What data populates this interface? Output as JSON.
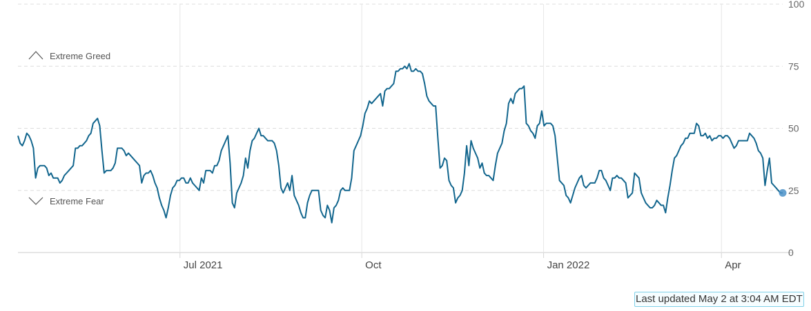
{
  "chart_data": {
    "type": "line",
    "series": [
      {
        "values": [
          47,
          44,
          43,
          45,
          48,
          47,
          45,
          42,
          30,
          34,
          35,
          35,
          35,
          34,
          31,
          32,
          30,
          30,
          30,
          28,
          29,
          31,
          32,
          33,
          34,
          35,
          42,
          42,
          43,
          43,
          44,
          45,
          47,
          48,
          52,
          53,
          54,
          51,
          41,
          32,
          33,
          33,
          33,
          34,
          36,
          42,
          42,
          42,
          41,
          39,
          40,
          39,
          38,
          37,
          36,
          35,
          28,
          31,
          32,
          32,
          33,
          31,
          28,
          26,
          22,
          19,
          17,
          14,
          18,
          23,
          26,
          27,
          29,
          29,
          30,
          30,
          28,
          28,
          30,
          28,
          27,
          26,
          25,
          30,
          28,
          33,
          33,
          33,
          32,
          35,
          35,
          37,
          41,
          43,
          45,
          47,
          36,
          20,
          18,
          24,
          26,
          28,
          31,
          38,
          34,
          41,
          45,
          46,
          48,
          50,
          47,
          47,
          46,
          45,
          45,
          45,
          44,
          41,
          35,
          26,
          24,
          26,
          28,
          25,
          31,
          23,
          21,
          19,
          16,
          14,
          14,
          20,
          23,
          25,
          25,
          25,
          25,
          17,
          15,
          14,
          19,
          17,
          12,
          18,
          19,
          21,
          25,
          26,
          25,
          25,
          25,
          30,
          41,
          43,
          45,
          47,
          51,
          56,
          58,
          61,
          60,
          61,
          62,
          63,
          64,
          59,
          65,
          66,
          66,
          67,
          68,
          73,
          73,
          74,
          74,
          75,
          74,
          76,
          73,
          73,
          74,
          73,
          73,
          72,
          68,
          63,
          61,
          60,
          59,
          59,
          46,
          34,
          35,
          38,
          37,
          29,
          27,
          26,
          20,
          22,
          23,
          25,
          32,
          43,
          35,
          45,
          42,
          40,
          38,
          34,
          36,
          32,
          31,
          31,
          30,
          29,
          35,
          40,
          42,
          44,
          49,
          52,
          60,
          62,
          60,
          64,
          65,
          66,
          66,
          67,
          52,
          51,
          49,
          48,
          46,
          51,
          52,
          57,
          51,
          52,
          52,
          52,
          51,
          47,
          38,
          29,
          28,
          27,
          23,
          22,
          20,
          23,
          26,
          28,
          30,
          31,
          27,
          26,
          27,
          28,
          28,
          28,
          30,
          33,
          33,
          30,
          29,
          27,
          25,
          30,
          30,
          31,
          30,
          30,
          29,
          28,
          22,
          23,
          24,
          32,
          31,
          30,
          24,
          22,
          20,
          19,
          18,
          18,
          19,
          21,
          20,
          19,
          19,
          16,
          22,
          27,
          33,
          38,
          39,
          41,
          43,
          44,
          46,
          46,
          48,
          48,
          48,
          52,
          51,
          47,
          47,
          48,
          46,
          47,
          45,
          46,
          46,
          47,
          47,
          46,
          47,
          47,
          46,
          44,
          42,
          43,
          45,
          45,
          45,
          45,
          45,
          48,
          47,
          46,
          44,
          41,
          40,
          38,
          27,
          33,
          38,
          28,
          27,
          26,
          25,
          24,
          24
        ]
      }
    ],
    "x_range": [
      "2021-04-10",
      "2022-05-02"
    ],
    "ylim": [
      0,
      100
    ],
    "yticks": [
      "0",
      "25",
      "50",
      "75",
      "100"
    ],
    "xtick_labels": [
      {
        "label": "Jul 2021",
        "date": "2021-07-01"
      },
      {
        "label": "Oct",
        "date": "2021-10-01"
      },
      {
        "label": "Jan 2022",
        "date": "2022-01-01"
      },
      {
        "label": "Apr",
        "date": "2022-04-01"
      }
    ],
    "annotations": [
      {
        "text": "Extreme Greed",
        "y": 80,
        "direction": "up"
      },
      {
        "text": "Extreme Fear",
        "y": 20,
        "direction": "down"
      }
    ],
    "grid": true,
    "line_color": "#11658d",
    "marker_color": "#4a90c8"
  },
  "footer": {
    "last_updated": "Last updated May 2 at 3:04 AM EDT"
  }
}
